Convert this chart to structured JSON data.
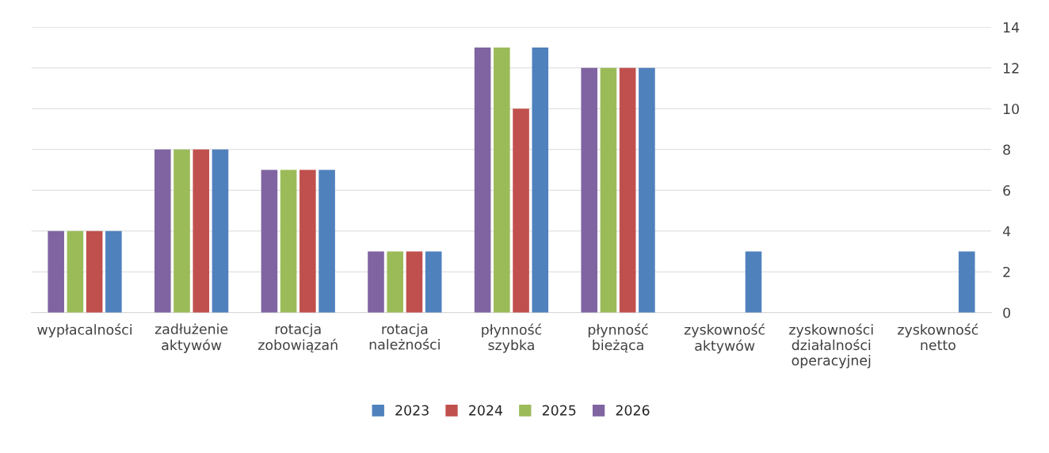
{
  "chart_data": {
    "type": "bar",
    "categories": [
      "wypłacalności",
      "zadłużenie\naktywów",
      "rotacja\nzobowiązań",
      "rotacja\nnależności",
      "płynność\nszybka",
      "płynność\nbieżąca",
      "zyskowność\naktywów",
      "zyskowności\ndziałalności\noperacyjnej",
      "zyskowność\nnetto"
    ],
    "series": [
      {
        "name": "2023",
        "color": "#4f81bd",
        "values": [
          4,
          8,
          7,
          3,
          13,
          12,
          3,
          0,
          3
        ]
      },
      {
        "name": "2024",
        "color": "#c0504d",
        "values": [
          4,
          8,
          7,
          3,
          10,
          12,
          0,
          0,
          0
        ]
      },
      {
        "name": "2025",
        "color": "#9bbb59",
        "values": [
          4,
          8,
          7,
          3,
          13,
          12,
          0,
          0,
          0
        ]
      },
      {
        "name": "2026",
        "color": "#8064a2",
        "values": [
          4,
          8,
          7,
          3,
          13,
          12,
          0,
          0,
          0
        ]
      }
    ],
    "ylim": [
      0,
      14
    ],
    "yticks": [
      0,
      2,
      4,
      6,
      8,
      10,
      12,
      14
    ],
    "grid": "y",
    "legend": "bottom"
  }
}
